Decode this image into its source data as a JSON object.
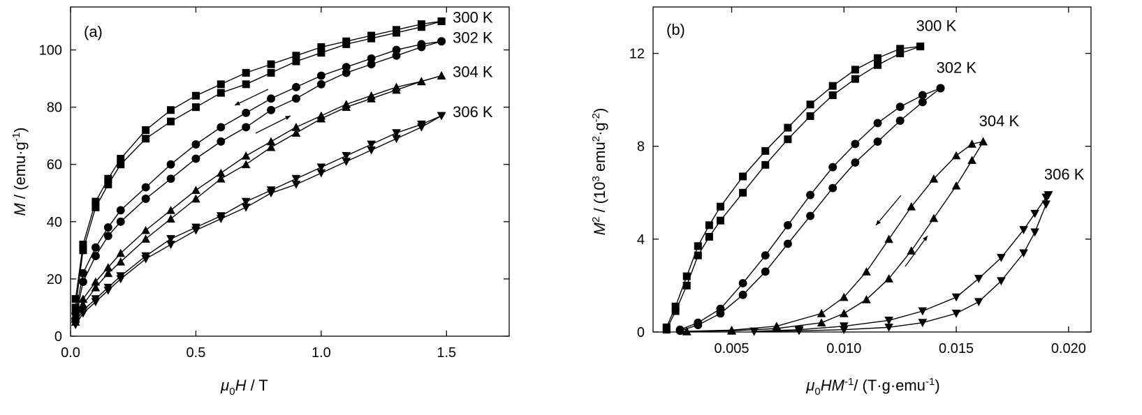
{
  "chart_data": [
    {
      "panel": "(a)",
      "type": "line",
      "xlabel": {
        "sym": "μ",
        "sub": "0",
        "sym2": "H",
        "rest": " / T"
      },
      "ylabel": {
        "sym": "M",
        "rest": " / (emu·g",
        "sup": "-1",
        "close": ")"
      },
      "xlim": [
        0,
        1.75
      ],
      "ylim": [
        0,
        115
      ],
      "xticks": [
        0.0,
        0.5,
        1.0,
        1.5
      ],
      "xtick_labels": [
        "0.0",
        "0.5",
        "1.0",
        "1.5"
      ],
      "yticks": [
        0,
        20,
        40,
        60,
        80,
        100
      ],
      "ytick_labels": [
        "0",
        "20",
        "40",
        "60",
        "80",
        "100"
      ],
      "series": [
        {
          "name": "300 K",
          "marker": "square",
          "x": [
            0.02,
            0.05,
            0.1,
            0.15,
            0.2,
            0.3,
            0.4,
            0.5,
            0.6,
            0.7,
            0.8,
            0.9,
            1.0,
            1.1,
            1.2,
            1.3,
            1.4,
            1.48
          ],
          "up": [
            10,
            30,
            45,
            53,
            60,
            69,
            75,
            80,
            85,
            88,
            92,
            96,
            99,
            102,
            104,
            106,
            108,
            110
          ],
          "down": [
            13,
            32,
            47,
            55,
            62,
            72,
            79,
            84,
            88,
            92,
            95,
            98,
            101,
            103,
            105,
            107,
            109,
            110
          ]
        },
        {
          "name": "302 K",
          "marker": "circle",
          "x": [
            0.02,
            0.05,
            0.1,
            0.15,
            0.2,
            0.3,
            0.4,
            0.5,
            0.6,
            0.7,
            0.8,
            0.9,
            1.0,
            1.1,
            1.2,
            1.3,
            1.4,
            1.48
          ],
          "up": [
            6,
            19,
            28,
            35,
            40,
            48,
            55,
            62,
            68,
            73,
            79,
            83,
            88,
            92,
            95,
            98,
            101,
            103
          ],
          "down": [
            8,
            22,
            31,
            38,
            44,
            52,
            60,
            67,
            73,
            78,
            83,
            87,
            91,
            94,
            97,
            100,
            102,
            103
          ]
        },
        {
          "name": "304 K",
          "marker": "triangle-up",
          "x": [
            0.02,
            0.05,
            0.1,
            0.15,
            0.2,
            0.3,
            0.4,
            0.5,
            0.6,
            0.7,
            0.8,
            0.9,
            1.0,
            1.1,
            1.2,
            1.3,
            1.4,
            1.48
          ],
          "up": [
            5,
            11,
            17,
            22,
            26,
            34,
            41,
            48,
            55,
            60,
            66,
            71,
            76,
            80,
            83,
            86,
            89,
            91
          ],
          "down": [
            6,
            13,
            19,
            24,
            29,
            37,
            44,
            51,
            57,
            63,
            68,
            73,
            77,
            81,
            84,
            87,
            89,
            91
          ]
        },
        {
          "name": "306 K",
          "marker": "triangle-down",
          "x": [
            0.02,
            0.05,
            0.1,
            0.15,
            0.2,
            0.3,
            0.4,
            0.5,
            0.6,
            0.7,
            0.8,
            0.9,
            1.0,
            1.1,
            1.2,
            1.3,
            1.4,
            1.48
          ],
          "up": [
            4,
            8,
            12,
            16,
            20,
            27,
            32,
            37,
            41,
            45,
            50,
            53,
            57,
            61,
            65,
            69,
            73,
            77
          ],
          "down": [
            5,
            9,
            13,
            17,
            21,
            28,
            34,
            38,
            42,
            47,
            51,
            55,
            59,
            63,
            67,
            71,
            74,
            77
          ]
        }
      ]
    },
    {
      "panel": "(b)",
      "type": "line",
      "xlabel": {
        "sym": "μ",
        "sub": "0",
        "sym2": "HM",
        "sup1": "-1",
        "rest": "/ (T·g·emu",
        "sup2": "-1",
        "close": ")"
      },
      "ylabel": {
        "sym": "M",
        "sup1": "2",
        "rest": " / (10",
        "sup2": "3",
        "rest2": " emu",
        "sup3": "2",
        "rest3": "·g",
        "sup4": "-2",
        "close": ")"
      },
      "xlim": [
        0.0015,
        0.021
      ],
      "ylim": [
        0,
        14
      ],
      "xticks": [
        0.005,
        0.01,
        0.015,
        0.02
      ],
      "xtick_labels": [
        "0.005",
        "0.010",
        "0.015",
        "0.020"
      ],
      "yticks": [
        0,
        4,
        8,
        12
      ],
      "ytick_labels": [
        "0",
        "4",
        "8",
        "12"
      ],
      "series": [
        {
          "name": "300 K",
          "marker": "square",
          "up": [
            [
              0.0021,
              0.1
            ],
            [
              0.0025,
              0.9
            ],
            [
              0.003,
              2.0
            ],
            [
              0.0035,
              3.3
            ],
            [
              0.004,
              4.1
            ],
            [
              0.0045,
              4.8
            ],
            [
              0.0055,
              6.0
            ],
            [
              0.0065,
              7.2
            ],
            [
              0.0075,
              8.3
            ],
            [
              0.0085,
              9.3
            ],
            [
              0.0095,
              10.2
            ],
            [
              0.0105,
              10.9
            ],
            [
              0.0115,
              11.5
            ],
            [
              0.0125,
              12.0
            ],
            [
              0.0134,
              12.3
            ]
          ],
          "down": [
            [
              0.0021,
              0.2
            ],
            [
              0.0025,
              1.1
            ],
            [
              0.003,
              2.4
            ],
            [
              0.0035,
              3.7
            ],
            [
              0.004,
              4.6
            ],
            [
              0.0045,
              5.4
            ],
            [
              0.0055,
              6.7
            ],
            [
              0.0065,
              7.8
            ],
            [
              0.0075,
              8.8
            ],
            [
              0.0085,
              9.8
            ],
            [
              0.0095,
              10.6
            ],
            [
              0.0105,
              11.3
            ],
            [
              0.0115,
              11.8
            ],
            [
              0.0125,
              12.2
            ],
            [
              0.0134,
              12.3
            ]
          ]
        },
        {
          "name": "302 K",
          "marker": "circle",
          "up": [
            [
              0.0027,
              0.05
            ],
            [
              0.0035,
              0.3
            ],
            [
              0.0045,
              0.8
            ],
            [
              0.0055,
              1.6
            ],
            [
              0.0065,
              2.6
            ],
            [
              0.0075,
              3.8
            ],
            [
              0.0085,
              5.0
            ],
            [
              0.0095,
              6.2
            ],
            [
              0.0105,
              7.3
            ],
            [
              0.0115,
              8.2
            ],
            [
              0.0125,
              9.1
            ],
            [
              0.0135,
              9.9
            ],
            [
              0.0143,
              10.5
            ]
          ],
          "down": [
            [
              0.0027,
              0.1
            ],
            [
              0.0035,
              0.4
            ],
            [
              0.0045,
              1.0
            ],
            [
              0.0055,
              2.1
            ],
            [
              0.0065,
              3.3
            ],
            [
              0.0075,
              4.6
            ],
            [
              0.0085,
              5.9
            ],
            [
              0.0095,
              7.1
            ],
            [
              0.0105,
              8.1
            ],
            [
              0.0115,
              9.0
            ],
            [
              0.0125,
              9.7
            ],
            [
              0.0135,
              10.2
            ],
            [
              0.0143,
              10.5
            ]
          ]
        },
        {
          "name": "304 K",
          "marker": "triangle-up",
          "up": [
            [
              0.003,
              0.02
            ],
            [
              0.005,
              0.05
            ],
            [
              0.007,
              0.15
            ],
            [
              0.009,
              0.4
            ],
            [
              0.01,
              0.8
            ],
            [
              0.011,
              1.4
            ],
            [
              0.012,
              2.3
            ],
            [
              0.013,
              3.5
            ],
            [
              0.014,
              4.9
            ],
            [
              0.015,
              6.3
            ],
            [
              0.0157,
              7.4
            ],
            [
              0.0162,
              8.2
            ]
          ],
          "down": [
            [
              0.003,
              0.03
            ],
            [
              0.005,
              0.08
            ],
            [
              0.007,
              0.25
            ],
            [
              0.009,
              0.8
            ],
            [
              0.01,
              1.5
            ],
            [
              0.011,
              2.6
            ],
            [
              0.012,
              4.0
            ],
            [
              0.013,
              5.4
            ],
            [
              0.014,
              6.6
            ],
            [
              0.015,
              7.6
            ],
            [
              0.0157,
              8.1
            ],
            [
              0.0162,
              8.2
            ]
          ]
        },
        {
          "name": "306 K",
          "marker": "triangle-down",
          "up": [
            [
              0.006,
              0.02
            ],
            [
              0.008,
              0.05
            ],
            [
              0.01,
              0.1
            ],
            [
              0.012,
              0.2
            ],
            [
              0.0135,
              0.4
            ],
            [
              0.015,
              0.8
            ],
            [
              0.016,
              1.3
            ],
            [
              0.017,
              2.2
            ],
            [
              0.018,
              3.4
            ],
            [
              0.0185,
              4.3
            ],
            [
              0.019,
              5.5
            ],
            [
              0.0191,
              5.9
            ]
          ],
          "down": [
            [
              0.006,
              0.03
            ],
            [
              0.008,
              0.1
            ],
            [
              0.01,
              0.25
            ],
            [
              0.012,
              0.5
            ],
            [
              0.0135,
              0.9
            ],
            [
              0.015,
              1.5
            ],
            [
              0.016,
              2.3
            ],
            [
              0.017,
              3.2
            ],
            [
              0.018,
              4.4
            ],
            [
              0.0185,
              5.1
            ],
            [
              0.019,
              5.8
            ],
            [
              0.0191,
              5.9
            ]
          ]
        }
      ]
    }
  ]
}
